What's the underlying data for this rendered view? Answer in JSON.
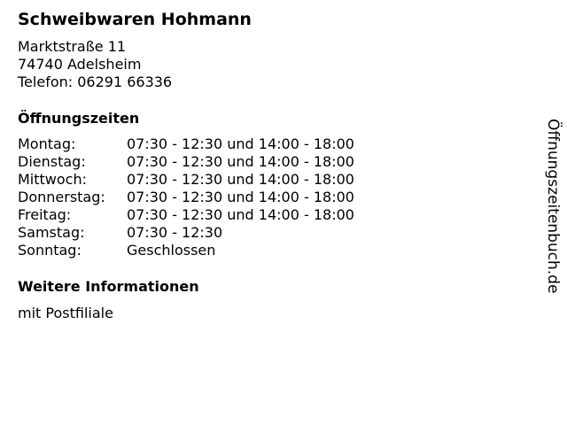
{
  "business": {
    "name": "Schweibwaren Hohmann",
    "street": "Marktstraße 11",
    "city": "74740 Adelsheim",
    "phone": "Telefon: 06291 66336"
  },
  "hours_heading": "Öffnungszeiten",
  "hours": [
    {
      "day": "Montag:",
      "time": "07:30 - 12:30 und 14:00 - 18:00"
    },
    {
      "day": "Dienstag:",
      "time": "07:30 - 12:30 und 14:00 - 18:00"
    },
    {
      "day": "Mittwoch:",
      "time": "07:30 - 12:30 und 14:00 - 18:00"
    },
    {
      "day": "Donnerstag:",
      "time": "07:30 - 12:30 und 14:00 - 18:00"
    },
    {
      "day": "Freitag:",
      "time": "07:30 - 12:30 und 14:00 - 18:00"
    },
    {
      "day": "Samstag:",
      "time": "07:30 - 12:30"
    },
    {
      "day": "Sonntag:",
      "time": "Geschlossen"
    }
  ],
  "info_heading": "Weitere Informationen",
  "info_text": "mit Postfiliale",
  "watermark": "Öffnungszeitenbuch.de"
}
